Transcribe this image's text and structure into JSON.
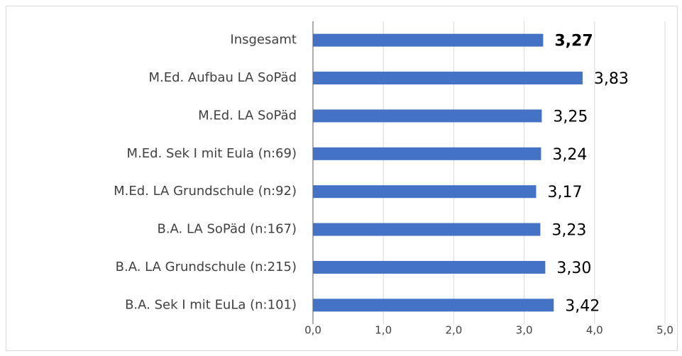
{
  "chart_data": {
    "type": "bar",
    "orientation": "horizontal",
    "categories": [
      "Insgesamt",
      "M.Ed. Aufbau LA SoPäd",
      "M.Ed. LA SoPäd",
      "M.Ed.  Sek I mit Eula (n:69)",
      "M.Ed. LA Grundschule (n:92)",
      "B.A. LA SoPäd (n:167)",
      "B.A. LA Grundschule (n:215)",
      "B.A. Sek I mit EuLa (n:101)"
    ],
    "values": [
      3.27,
      3.83,
      3.25,
      3.24,
      3.17,
      3.23,
      3.3,
      3.42
    ],
    "value_labels": [
      "3,27",
      "3,83",
      "3,25",
      "3,24",
      "3,17",
      "3,23",
      "3,30",
      "3,42"
    ],
    "color": "#4472c4",
    "xlim": [
      0,
      5
    ],
    "xticks": [
      {
        "value": 0,
        "label": "0,0"
      },
      {
        "value": 1,
        "label": "1,0"
      },
      {
        "value": 2,
        "label": "2,0"
      },
      {
        "value": 3,
        "label": "3,0"
      },
      {
        "value": 4,
        "label": "4,0"
      },
      {
        "value": 5,
        "label": "5,0"
      }
    ],
    "grid": true
  }
}
